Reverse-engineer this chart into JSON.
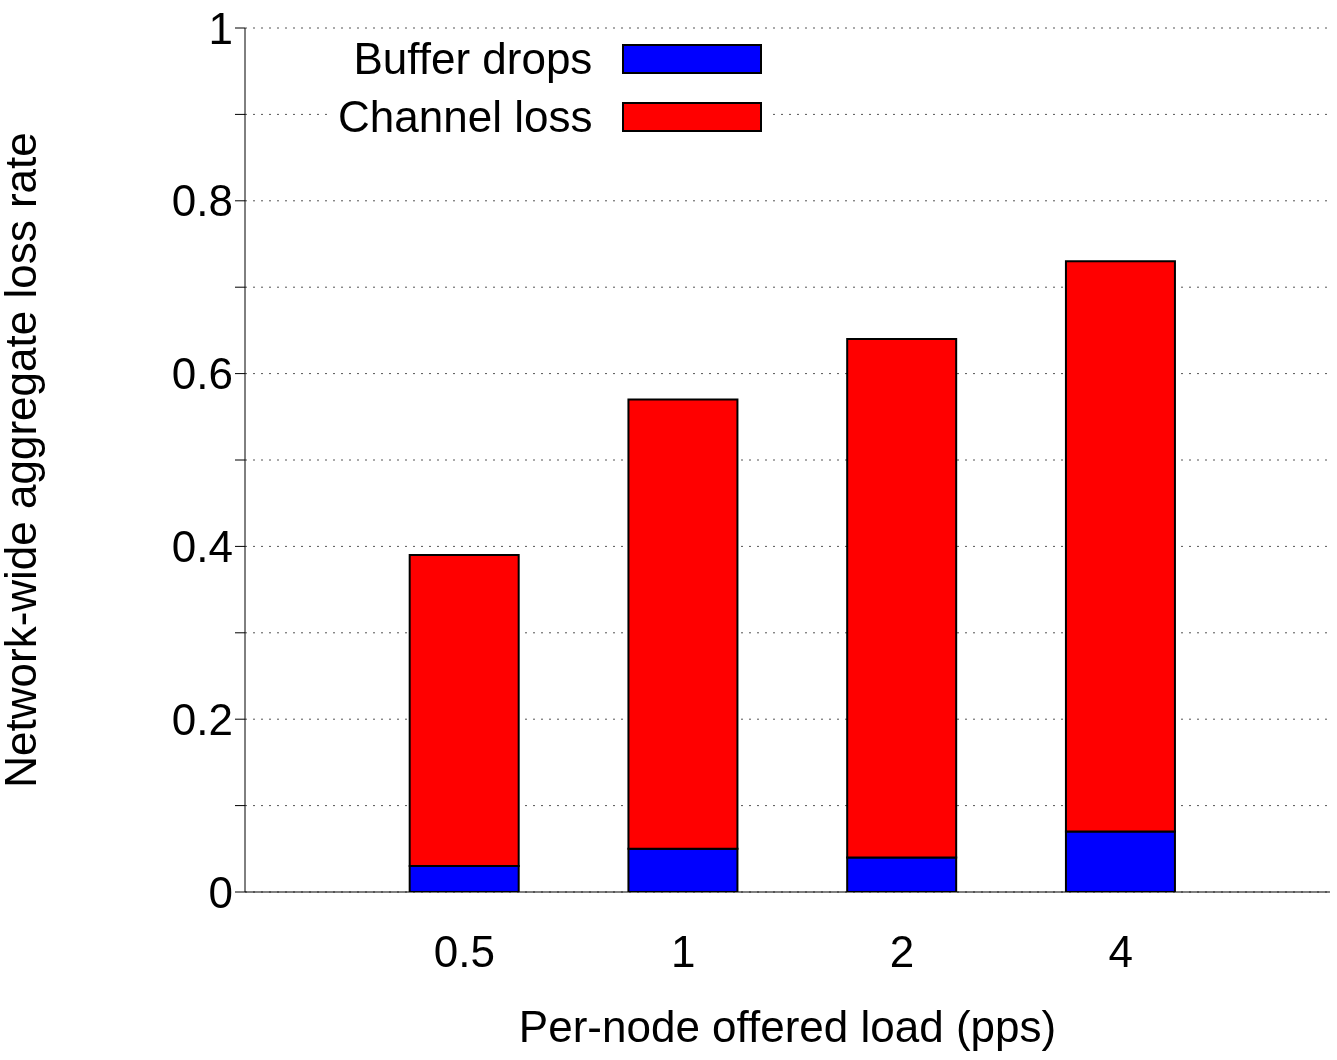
{
  "chart_data": {
    "type": "bar",
    "stacked": true,
    "xlabel": "Per-node offered load (pps)",
    "ylabel": "Network-wide aggregate loss rate",
    "categories": [
      "0.5",
      "1",
      "2",
      "4"
    ],
    "series": [
      {
        "name": "Buffer drops",
        "color": "#0000ff",
        "values": [
          0.03,
          0.05,
          0.04,
          0.07
        ]
      },
      {
        "name": "Channel loss",
        "color": "#ff0000",
        "values": [
          0.36,
          0.52,
          0.6,
          0.66
        ]
      }
    ],
    "ylim": [
      0,
      1
    ],
    "yticks": [
      0,
      {
        "value": 0.1,
        "label": null
      },
      0.2,
      {
        "value": 0.3,
        "label": null
      },
      0.4,
      {
        "value": 0.5,
        "label": null
      },
      0.6,
      {
        "value": 0.7,
        "label": null
      },
      0.8,
      {
        "value": 0.9,
        "label": null
      },
      1
    ],
    "grid": "y",
    "legend": "top left"
  }
}
